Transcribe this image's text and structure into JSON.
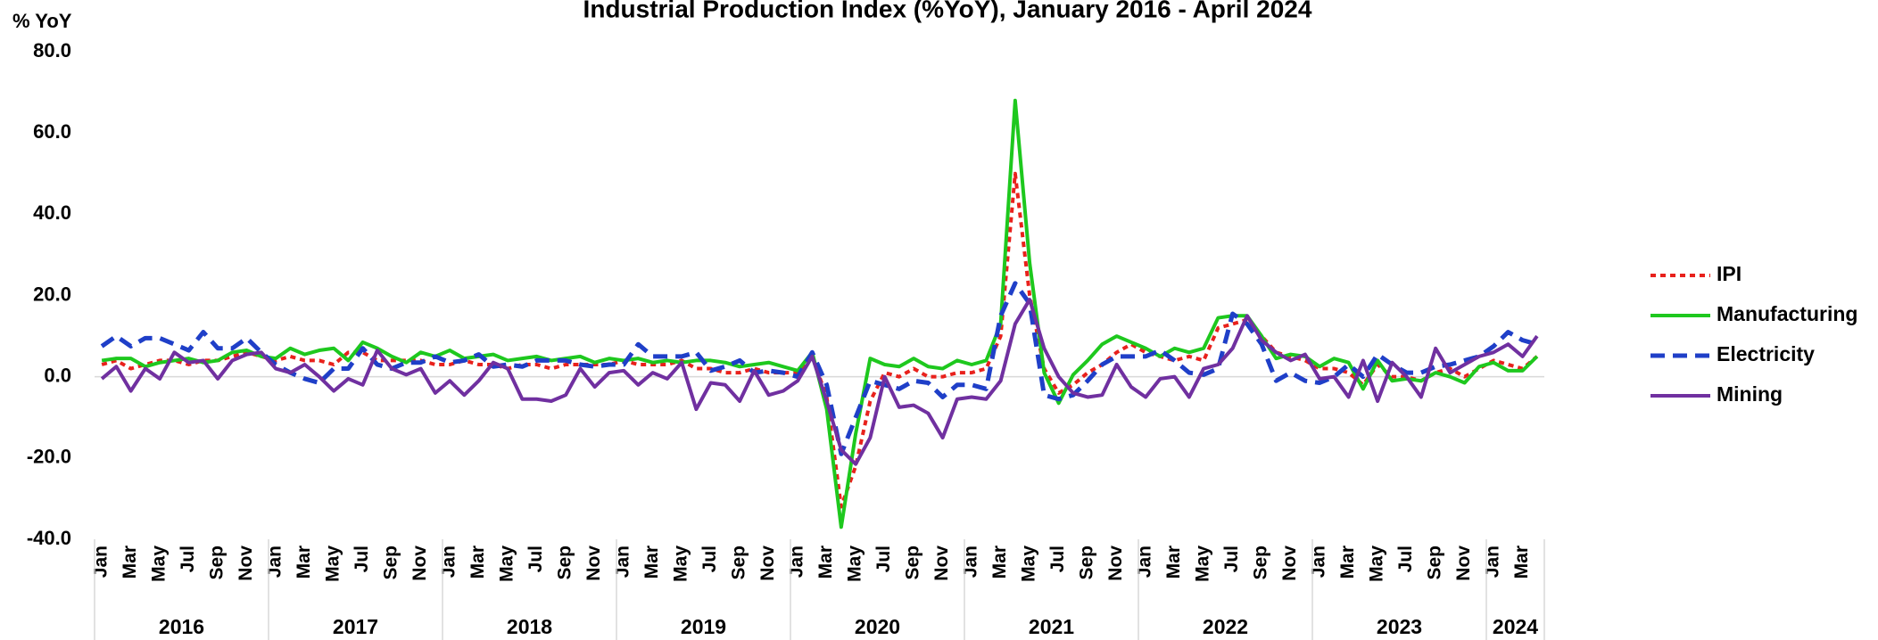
{
  "chart_data": {
    "type": "line",
    "title": "Industrial Production Index (%YoY), January 2016 - April 2024",
    "y_axis_label": "% YoY",
    "categories": [
      "Jan",
      null,
      "Mar",
      null,
      "May",
      null,
      "Jul",
      null,
      "Sep",
      null,
      "Nov",
      null,
      "Jan",
      null,
      "Mar",
      null,
      "May",
      null,
      "Jul",
      null,
      "Sep",
      null,
      "Nov",
      null,
      "Jan",
      null,
      "Mar",
      null,
      "May",
      null,
      "Jul",
      null,
      "Sep",
      null,
      "Nov",
      null,
      "Jan",
      null,
      "Mar",
      null,
      "May",
      null,
      "Jul",
      null,
      "Sep",
      null,
      "Nov",
      null,
      "Jan",
      null,
      "Mar",
      null,
      "May",
      null,
      "Jul",
      null,
      "Sep",
      null,
      "Nov",
      null,
      "Jan",
      null,
      "Mar",
      null,
      "May",
      null,
      "Jul",
      null,
      "Sep",
      null,
      "Nov",
      null,
      "Jan",
      null,
      "Mar",
      null,
      "May",
      null,
      "Jul",
      null,
      "Sep",
      null,
      "Nov",
      null,
      "Jan",
      null,
      "Mar",
      null,
      "May",
      null,
      "Jul",
      null,
      "Sep",
      null,
      "Nov",
      null,
      "Jan",
      null,
      "Mar",
      null
    ],
    "years": [
      "2016",
      "2017",
      "2018",
      "2019",
      "2020",
      "2021",
      "2022",
      "2023",
      "2024"
    ],
    "ylim": [
      -40,
      80
    ],
    "yticks": [
      {
        "value": -40,
        "label": "-40.0"
      },
      {
        "value": -20,
        "label": "-20.0"
      },
      {
        "value": 0,
        "label": "0.0"
      },
      {
        "value": 20,
        "label": "20.0"
      },
      {
        "value": 40,
        "label": "40.0"
      },
      {
        "value": 60,
        "label": "60.0"
      },
      {
        "value": 80,
        "label": "80.0"
      }
    ],
    "legend": "right",
    "series": [
      {
        "name": "IPI",
        "color": "#e8211c",
        "dash": "dashed",
        "values": [
          3,
          4,
          2,
          3,
          4,
          4,
          3,
          4,
          4,
          5,
          6,
          5,
          4,
          5,
          4,
          4,
          3,
          6,
          6,
          4,
          4,
          4,
          4,
          3,
          3,
          4,
          3,
          3,
          2,
          3,
          3,
          2,
          3,
          3,
          3,
          3,
          4,
          3,
          3,
          3,
          4,
          2,
          2,
          1,
          1,
          2,
          1,
          1,
          1,
          5,
          -5,
          -32,
          -22,
          -6,
          1,
          0,
          2,
          0,
          0,
          1,
          1,
          2,
          10,
          50,
          20,
          2,
          -4,
          -2,
          1,
          3,
          6,
          8,
          6,
          5,
          4,
          5,
          4,
          12,
          13,
          14,
          10,
          6,
          5,
          4,
          2,
          2,
          1,
          -2,
          3,
          0,
          0,
          -1,
          1,
          2,
          0,
          2,
          4,
          3,
          2,
          5
        ]
      },
      {
        "name": "Manufacturing",
        "color": "#1ec81e",
        "dash": "solid",
        "values": [
          4,
          4.5,
          4.5,
          2.5,
          3.5,
          4,
          4.5,
          3.5,
          4,
          6,
          6.5,
          5,
          4.5,
          7,
          5.5,
          6.5,
          7,
          4,
          8.5,
          7,
          5,
          3.5,
          6,
          5,
          6.5,
          4.5,
          5,
          5.5,
          4,
          4.5,
          5,
          4,
          4.5,
          5,
          3.5,
          4.5,
          4,
          4.5,
          3.5,
          4,
          3.5,
          4,
          4,
          3.5,
          2.5,
          3,
          3.5,
          2.5,
          1.5,
          6,
          -8,
          -37,
          -14,
          4.5,
          3,
          2.5,
          4.5,
          2.5,
          2,
          4,
          3,
          4,
          13,
          68,
          28,
          1,
          -6.5,
          0.5,
          4,
          8,
          10,
          8.5,
          7,
          5,
          7,
          6,
          7,
          14.5,
          15,
          15,
          10,
          4.5,
          5.5,
          5,
          2.5,
          4.5,
          3.5,
          -3,
          4,
          -1,
          -0.5,
          -1,
          1,
          0,
          -1.5,
          2.5,
          3.5,
          1.5,
          1.5,
          5
        ]
      },
      {
        "name": "Electricity",
        "color": "#1f3fc8",
        "dash": "longdash",
        "values": [
          7.5,
          10,
          7.5,
          9.5,
          9.5,
          8,
          6.5,
          11,
          7,
          7,
          9.5,
          6,
          3,
          1,
          -0.5,
          -1.5,
          2,
          2,
          7,
          3,
          2,
          3.5,
          3.5,
          5,
          3.5,
          4,
          5.5,
          2.5,
          3,
          2.5,
          4,
          4,
          4,
          3,
          2.5,
          3,
          3,
          8,
          5,
          5,
          5,
          6,
          1.5,
          2.5,
          4,
          1,
          1.5,
          1,
          0,
          6,
          -2,
          -19,
          -10,
          -1,
          -2,
          -3,
          -1,
          -1.5,
          -5,
          -2,
          -2,
          -3,
          15,
          23,
          18,
          -4.5,
          -5.5,
          -4.5,
          -1,
          3,
          5,
          5,
          5,
          6.5,
          4,
          1,
          0.5,
          2,
          15.5,
          13,
          8,
          -1,
          1,
          -1,
          -1.5,
          0,
          3,
          0,
          5.5,
          3,
          1,
          1,
          2.5,
          3,
          4,
          5,
          7.5,
          11,
          9,
          8
        ]
      },
      {
        "name": "Mining",
        "color": "#7030a0",
        "dash": "solid",
        "values": [
          -0.5,
          2.5,
          -3.5,
          2,
          -0.5,
          6,
          3.5,
          4,
          -0.5,
          4,
          5.5,
          6,
          2,
          1,
          3,
          0,
          -3.5,
          -0.5,
          -2,
          6.5,
          2,
          0.5,
          2,
          -4,
          -1,
          -4.5,
          -1,
          3.5,
          2,
          -5.5,
          -5.5,
          -6,
          -4.5,
          2,
          -2.5,
          1,
          1.5,
          -2,
          1,
          -0.5,
          3.5,
          -8,
          -1.5,
          -2,
          -6,
          1.5,
          -4.5,
          -3.5,
          -1,
          5,
          -6,
          -18,
          -21.5,
          -15,
          0,
          -7.5,
          -7,
          -9,
          -15,
          -5.5,
          -5,
          -5.5,
          -1,
          13,
          19,
          7,
          0,
          -4,
          -5,
          -4.5,
          3,
          -2.5,
          -5,
          -0.5,
          0,
          -5,
          2,
          3,
          7,
          15,
          9,
          6,
          4,
          5.5,
          -0.5,
          0,
          -5,
          4,
          -6,
          3.5,
          0,
          -5,
          7,
          1,
          3,
          5,
          6,
          8,
          5,
          10
        ]
      }
    ]
  }
}
